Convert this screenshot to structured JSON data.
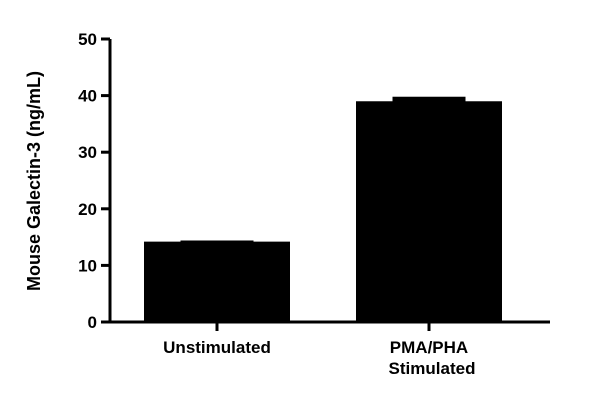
{
  "chart_data": {
    "type": "bar",
    "title": "",
    "xlabel": "",
    "ylabel": "Mouse Galectin-3 (ng/mL)",
    "ylim": [
      0,
      50
    ],
    "yticks": [
      0,
      10,
      20,
      30,
      40,
      50
    ],
    "categories": [
      [
        "Unstimulated"
      ],
      [
        "PMA/PHA",
        "Stimulated"
      ]
    ],
    "values": [
      14.2,
      39.0
    ],
    "error_upper": [
      14.4,
      39.8
    ],
    "bar_color": "#000000",
    "grid": false,
    "legend": "none"
  }
}
